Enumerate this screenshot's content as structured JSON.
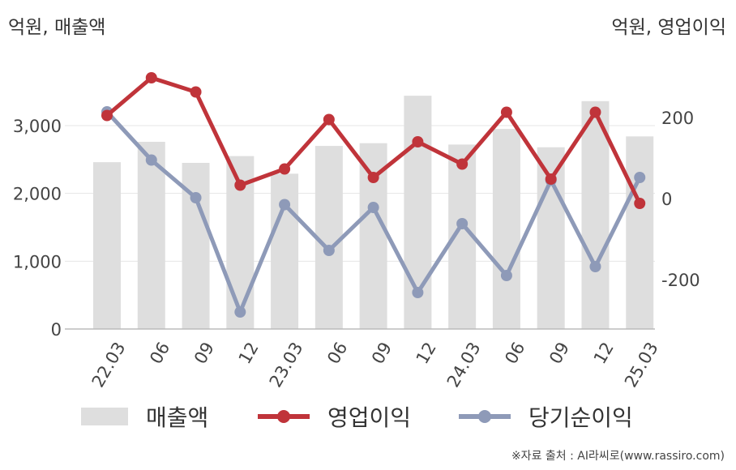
{
  "units": {
    "left": "억원, 매출액",
    "right": "억원, 영업이익"
  },
  "legend": {
    "bar_label": "매출액",
    "op_label": "영업이익",
    "net_label": "당기순이익"
  },
  "source": "※자료 출처 : AI라씨로(www.rassiro.com)",
  "colors": {
    "bar": "#dedede",
    "op": "#c0343a",
    "net": "#8e9ab8",
    "grid": "#e6e6e6",
    "axis": "#bbbbbb"
  },
  "chart_data": {
    "type": "bar+line",
    "categories": [
      "22.03",
      "06",
      "09",
      "12",
      "23.03",
      "06",
      "09",
      "12",
      "24.03",
      "06",
      "09",
      "12",
      "25.03"
    ],
    "left_axis": {
      "ticks": [
        0,
        1000,
        2000,
        3000
      ],
      "tick_labels": [
        "0",
        "1,000",
        "2,000",
        "3,000"
      ],
      "range": [
        0,
        3800
      ]
    },
    "right_axis": {
      "ticks": [
        -200,
        0,
        200
      ],
      "tick_labels": [
        "-200",
        "0",
        "200"
      ],
      "range": [
        -320,
        340
      ]
    },
    "bars": {
      "name": "매출액",
      "axis": "left",
      "values": [
        2460,
        2760,
        2450,
        2550,
        2290,
        2700,
        2740,
        3440,
        2720,
        2950,
        2680,
        3360,
        2840
      ]
    },
    "series": [
      {
        "name": "영업이익",
        "axis": "right",
        "values": [
          205,
          298,
          263,
          33,
          73,
          195,
          52,
          140,
          85,
          213,
          48,
          213,
          -12
        ]
      },
      {
        "name": "당기순이익",
        "axis": "right",
        "values": [
          214,
          95,
          2,
          -280,
          -15,
          -128,
          -22,
          -232,
          -62,
          -190,
          45,
          -168,
          52
        ]
      }
    ]
  }
}
